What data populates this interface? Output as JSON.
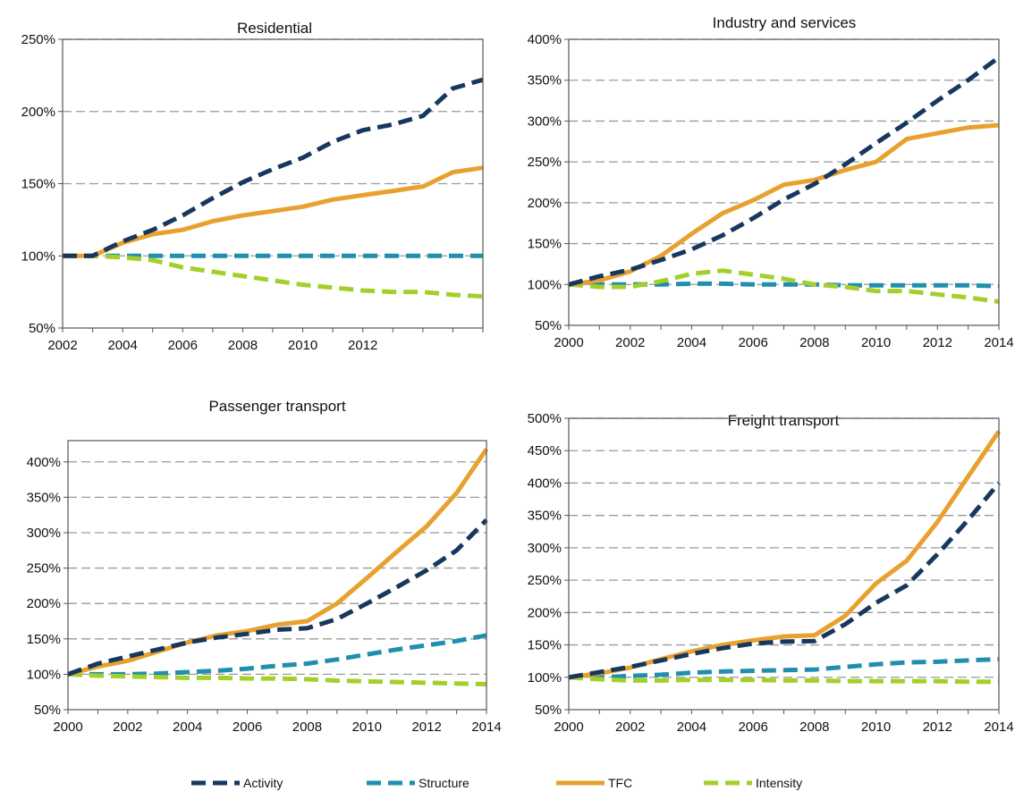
{
  "legend": [
    {
      "name": "Activity",
      "color": "#17375e",
      "dashed": true
    },
    {
      "name": "Structure",
      "color": "#1f8fad",
      "dashed": true
    },
    {
      "name": "TFC",
      "color": "#e8a12e",
      "dashed": false
    },
    {
      "name": "Intensity",
      "color": "#a4cf2b",
      "dashed": true
    }
  ],
  "chart_data": [
    {
      "type": "line",
      "title": "Residential",
      "xlabel": "",
      "ylabel": "",
      "x": [
        2002,
        2003,
        2004,
        2005,
        2006,
        2007,
        2008,
        2009,
        2010,
        2011,
        2012,
        2013,
        2014,
        2015,
        2016
      ],
      "xticks": [
        "2002",
        "2004",
        "2006",
        "2008",
        "2010",
        "2012"
      ],
      "xlim": [
        2002,
        2016
      ],
      "yticks": [
        "50%",
        "100%",
        "150%",
        "200%",
        "250%"
      ],
      "ylim": [
        50,
        250
      ],
      "grid": true,
      "series": [
        {
          "name": "Activity",
          "values": [
            100,
            100,
            110,
            118,
            128,
            140,
            151,
            160,
            168,
            179,
            187,
            191,
            197,
            216,
            222
          ]
        },
        {
          "name": "Structure",
          "values": [
            100,
            100,
            100,
            100,
            100,
            100,
            100,
            100,
            100,
            100,
            100,
            100,
            100,
            100,
            100
          ]
        },
        {
          "name": "TFC",
          "values": [
            100,
            100,
            109,
            115,
            118,
            124,
            128,
            131,
            134,
            139,
            142,
            145,
            148,
            158,
            161
          ]
        },
        {
          "name": "Intensity",
          "values": [
            100,
            100,
            99,
            97,
            92,
            89,
            86,
            83,
            80,
            78,
            76,
            75,
            75,
            73,
            72
          ]
        }
      ]
    },
    {
      "type": "line",
      "title": "Industry and services",
      "xlabel": "",
      "ylabel": "",
      "x": [
        2000,
        2001,
        2002,
        2003,
        2004,
        2005,
        2006,
        2007,
        2008,
        2009,
        2010,
        2011,
        2012,
        2013,
        2014
      ],
      "xticks": [
        "2000",
        "2002",
        "2004",
        "2006",
        "2008",
        "2010",
        "2012",
        "2014"
      ],
      "xlim": [
        2000,
        2014
      ],
      "yticks": [
        "50%",
        "100%",
        "150%",
        "200%",
        "250%",
        "300%",
        "350%",
        "400%"
      ],
      "ylim": [
        50,
        400
      ],
      "grid": true,
      "series": [
        {
          "name": "Activity",
          "values": [
            100,
            110,
            118,
            130,
            143,
            160,
            181,
            204,
            223,
            247,
            273,
            298,
            325,
            350,
            378
          ]
        },
        {
          "name": "Structure",
          "values": [
            100,
            100,
            100,
            100,
            101,
            101,
            100,
            100,
            100,
            99,
            99,
            99,
            99,
            99,
            98
          ]
        },
        {
          "name": "TFC",
          "values": [
            100,
            105,
            116,
            135,
            162,
            187,
            203,
            222,
            228,
            240,
            250,
            278,
            285,
            292,
            295
          ]
        },
        {
          "name": "Intensity",
          "values": [
            100,
            97,
            97,
            104,
            113,
            117,
            112,
            107,
            100,
            97,
            92,
            92,
            88,
            84,
            79
          ]
        }
      ]
    },
    {
      "type": "line",
      "title": "Passenger transport",
      "xlabel": "",
      "ylabel": "",
      "x": [
        2000,
        2001,
        2002,
        2003,
        2004,
        2005,
        2006,
        2007,
        2008,
        2009,
        2010,
        2011,
        2012,
        2013,
        2014
      ],
      "xticks": [
        "2000",
        "2002",
        "2004",
        "2006",
        "2008",
        "2010",
        "2012",
        "2014"
      ],
      "xlim": [
        2000,
        2014
      ],
      "yticks": [
        "50%",
        "100%",
        "150%",
        "200%",
        "250%",
        "300%",
        "350%",
        "400%"
      ],
      "ylim": [
        50,
        430
      ],
      "grid": true,
      "series": [
        {
          "name": "Activity",
          "values": [
            100,
            115,
            125,
            135,
            145,
            152,
            157,
            163,
            165,
            178,
            200,
            223,
            247,
            275,
            318
          ]
        },
        {
          "name": "Structure",
          "values": [
            100,
            100,
            100,
            101,
            103,
            105,
            108,
            112,
            115,
            121,
            128,
            135,
            141,
            147,
            155
          ]
        },
        {
          "name": "TFC",
          "values": [
            100,
            111,
            119,
            132,
            145,
            155,
            161,
            170,
            175,
            200,
            236,
            273,
            309,
            356,
            418
          ]
        },
        {
          "name": "Intensity",
          "values": [
            100,
            98,
            97,
            96,
            95,
            95,
            94,
            94,
            93,
            91,
            90,
            89,
            88,
            87,
            86
          ]
        }
      ]
    },
    {
      "type": "line",
      "title": "Freight transport",
      "xlabel": "",
      "ylabel": "",
      "x": [
        2000,
        2001,
        2002,
        2003,
        2004,
        2005,
        2006,
        2007,
        2008,
        2009,
        2010,
        2011,
        2012,
        2013,
        2014
      ],
      "xticks": [
        "2000",
        "2002",
        "2004",
        "2006",
        "2008",
        "2010",
        "2012",
        "2014"
      ],
      "xlim": [
        2000,
        2014
      ],
      "yticks": [
        "50%",
        "100%",
        "150%",
        "200%",
        "250%",
        "300%",
        "350%",
        "400%",
        "450%",
        "500%"
      ],
      "ylim": [
        50,
        500
      ],
      "grid": true,
      "series": [
        {
          "name": "Activity",
          "values": [
            100,
            108,
            116,
            126,
            136,
            145,
            152,
            155,
            156,
            182,
            215,
            242,
            290,
            343,
            400
          ]
        },
        {
          "name": "Structure",
          "values": [
            100,
            100,
            102,
            104,
            107,
            109,
            110,
            111,
            112,
            116,
            120,
            123,
            124,
            126,
            128
          ]
        },
        {
          "name": "TFC",
          "values": [
            100,
            106,
            115,
            128,
            140,
            150,
            157,
            163,
            165,
            195,
            245,
            280,
            340,
            410,
            480
          ]
        },
        {
          "name": "Intensity",
          "values": [
            100,
            97,
            95,
            95,
            96,
            96,
            96,
            95,
            95,
            94,
            94,
            94,
            94,
            93,
            93
          ]
        }
      ]
    }
  ]
}
